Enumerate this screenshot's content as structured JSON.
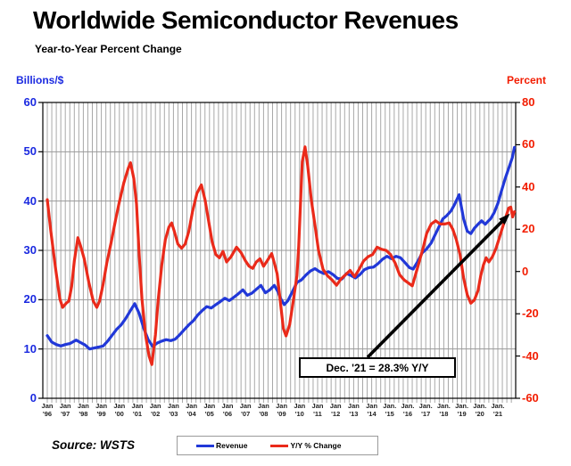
{
  "title": "Worldwide Semiconductor Revenues",
  "subtitle": "Year-to-Year Percent Change",
  "source_note": "Source: WSTS",
  "annotation": {
    "text": "Dec. '21 = 28.3% Y/Y"
  },
  "left_axis": {
    "label": "Billions/$",
    "color": "#1b2ae0",
    "min": 0,
    "max": 60,
    "step": 10,
    "ticks": [
      0,
      10,
      20,
      30,
      40,
      50,
      60
    ]
  },
  "right_axis": {
    "label": "Percent",
    "color": "#f21c00",
    "min": -60,
    "max": 80,
    "step": 20,
    "ticks": [
      -60,
      -40,
      -20,
      0,
      20,
      40,
      60,
      80
    ]
  },
  "x_axis": {
    "labels": [
      {
        "m": "Jan",
        "y": "'96"
      },
      {
        "m": "Jan",
        "y": "'97"
      },
      {
        "m": "Jan",
        "y": "'98"
      },
      {
        "m": "Jan",
        "y": "'99"
      },
      {
        "m": "Jan",
        "y": "'00"
      },
      {
        "m": "Jan",
        "y": "'01"
      },
      {
        "m": "Jan",
        "y": "'02"
      },
      {
        "m": "Jan",
        "y": "'03"
      },
      {
        "m": "Jan",
        "y": "'04"
      },
      {
        "m": "Jan",
        "y": "'05"
      },
      {
        "m": "Jan",
        "y": "'06"
      },
      {
        "m": "Jan",
        "y": "'07"
      },
      {
        "m": "Jan",
        "y": "'08"
      },
      {
        "m": "Jan",
        "y": "'09"
      },
      {
        "m": "Jan",
        "y": "'10"
      },
      {
        "m": "Jan",
        "y": "'11"
      },
      {
        "m": "Jan",
        "y": "'12"
      },
      {
        "m": "Jan",
        "y": "'13"
      },
      {
        "m": "Jan",
        "y": "'14"
      },
      {
        "m": "Jan.",
        "y": "'15"
      },
      {
        "m": "Jan.",
        "y": "'16"
      },
      {
        "m": "Jan.",
        "y": "'17"
      },
      {
        "m": "Jan.",
        "y": "'18"
      },
      {
        "m": "Jan.",
        "y": "'19"
      },
      {
        "m": "Jan.",
        "y": "'20"
      },
      {
        "m": "Jan.",
        "y": "'21"
      }
    ]
  },
  "legend": [
    {
      "label": "Revenue",
      "color": "#2138d8"
    },
    {
      "label": "Y/Y % Change",
      "color": "#ea2a1a"
    }
  ],
  "grid_color": "#a8a8a8",
  "chart_data": {
    "type": "line",
    "title": "Worldwide Semiconductor Revenues",
    "subtitle": "Year-to-Year Percent Change",
    "x_range_years": [
      1996,
      2022
    ],
    "left_ylim": [
      0,
      60
    ],
    "right_ylim": [
      -60,
      80
    ],
    "grid": "quarterly-vertical, 10-unit horizontal",
    "legend_position": "bottom-center",
    "annotation_text": "Dec. '21 = 28.3% Y/Y",
    "series": [
      {
        "name": "Revenue",
        "axis": "left",
        "units": "US$ billions per month",
        "color": "#2138d8",
        "points": [
          [
            1996.0,
            12.7
          ],
          [
            1996.25,
            11.4
          ],
          [
            1996.5,
            10.9
          ],
          [
            1996.75,
            10.6
          ],
          [
            1997.0,
            10.9
          ],
          [
            1997.25,
            11.1
          ],
          [
            1997.6,
            11.8
          ],
          [
            1997.85,
            11.3
          ],
          [
            1998.1,
            10.8
          ],
          [
            1998.35,
            10.0
          ],
          [
            1998.6,
            10.2
          ],
          [
            1998.85,
            10.4
          ],
          [
            1999.1,
            10.6
          ],
          [
            1999.35,
            11.6
          ],
          [
            1999.6,
            12.8
          ],
          [
            1999.85,
            14.0
          ],
          [
            2000.1,
            14.9
          ],
          [
            2000.35,
            16.2
          ],
          [
            2000.6,
            17.7
          ],
          [
            2000.85,
            19.2
          ],
          [
            2001.1,
            17.2
          ],
          [
            2001.35,
            14.2
          ],
          [
            2001.6,
            11.9
          ],
          [
            2001.85,
            10.5
          ],
          [
            2002.1,
            11.2
          ],
          [
            2002.35,
            11.6
          ],
          [
            2002.6,
            11.9
          ],
          [
            2002.85,
            11.7
          ],
          [
            2003.1,
            12.0
          ],
          [
            2003.35,
            12.9
          ],
          [
            2003.6,
            13.9
          ],
          [
            2003.85,
            14.9
          ],
          [
            2004.1,
            15.7
          ],
          [
            2004.35,
            16.9
          ],
          [
            2004.6,
            17.8
          ],
          [
            2004.85,
            18.6
          ],
          [
            2005.1,
            18.3
          ],
          [
            2005.35,
            19.0
          ],
          [
            2005.6,
            19.6
          ],
          [
            2005.85,
            20.3
          ],
          [
            2006.1,
            19.8
          ],
          [
            2006.35,
            20.5
          ],
          [
            2006.6,
            21.2
          ],
          [
            2006.85,
            22.0
          ],
          [
            2007.1,
            20.9
          ],
          [
            2007.35,
            21.3
          ],
          [
            2007.6,
            22.1
          ],
          [
            2007.85,
            22.9
          ],
          [
            2008.1,
            21.4
          ],
          [
            2008.35,
            22.0
          ],
          [
            2008.6,
            22.9
          ],
          [
            2008.8,
            21.6
          ],
          [
            2008.95,
            20.2
          ],
          [
            2009.15,
            19.0
          ],
          [
            2009.35,
            19.8
          ],
          [
            2009.6,
            21.6
          ],
          [
            2009.85,
            23.5
          ],
          [
            2010.1,
            24.0
          ],
          [
            2010.35,
            25.0
          ],
          [
            2010.6,
            25.8
          ],
          [
            2010.85,
            26.3
          ],
          [
            2011.1,
            25.7
          ],
          [
            2011.35,
            25.3
          ],
          [
            2011.6,
            25.7
          ],
          [
            2011.85,
            25.1
          ],
          [
            2012.1,
            24.3
          ],
          [
            2012.35,
            24.2
          ],
          [
            2012.6,
            25.3
          ],
          [
            2012.85,
            24.9
          ],
          [
            2013.1,
            24.4
          ],
          [
            2013.35,
            25.1
          ],
          [
            2013.6,
            26.1
          ],
          [
            2013.85,
            26.5
          ],
          [
            2014.1,
            26.6
          ],
          [
            2014.35,
            27.3
          ],
          [
            2014.6,
            28.2
          ],
          [
            2014.85,
            28.8
          ],
          [
            2015.1,
            28.3
          ],
          [
            2015.35,
            28.8
          ],
          [
            2015.6,
            28.5
          ],
          [
            2015.85,
            27.5
          ],
          [
            2016.1,
            26.5
          ],
          [
            2016.3,
            26.2
          ],
          [
            2016.55,
            27.7
          ],
          [
            2016.8,
            29.5
          ],
          [
            2017.05,
            30.3
          ],
          [
            2017.3,
            31.5
          ],
          [
            2017.55,
            33.4
          ],
          [
            2017.8,
            35.3
          ],
          [
            2017.95,
            36.4
          ],
          [
            2018.15,
            37.0
          ],
          [
            2018.4,
            38.0
          ],
          [
            2018.6,
            39.3
          ],
          [
            2018.85,
            41.3
          ],
          [
            2019.1,
            36.4
          ],
          [
            2019.3,
            33.9
          ],
          [
            2019.5,
            33.4
          ],
          [
            2019.7,
            34.5
          ],
          [
            2019.9,
            35.3
          ],
          [
            2020.1,
            36.0
          ],
          [
            2020.3,
            35.3
          ],
          [
            2020.45,
            35.9
          ],
          [
            2020.6,
            36.4
          ],
          [
            2020.8,
            37.7
          ],
          [
            2021.0,
            39.5
          ],
          [
            2021.2,
            42.0
          ],
          [
            2021.4,
            44.5
          ],
          [
            2021.6,
            46.6
          ],
          [
            2021.8,
            48.8
          ],
          [
            2021.92,
            50.9
          ]
        ]
      },
      {
        "name": "Y/Y % Change",
        "axis": "right",
        "units": "percent",
        "color": "#ea2a1a",
        "points": [
          [
            1996.0,
            34
          ],
          [
            1996.2,
            19
          ],
          [
            1996.45,
            2
          ],
          [
            1996.7,
            -13
          ],
          [
            1996.85,
            -17
          ],
          [
            1997.05,
            -15
          ],
          [
            1997.2,
            -14
          ],
          [
            1997.35,
            -7
          ],
          [
            1997.5,
            5
          ],
          [
            1997.7,
            16
          ],
          [
            1997.85,
            12
          ],
          [
            1998.05,
            6
          ],
          [
            1998.3,
            -5
          ],
          [
            1998.55,
            -14
          ],
          [
            1998.75,
            -17
          ],
          [
            1998.9,
            -14
          ],
          [
            1999.1,
            -6
          ],
          [
            1999.3,
            4
          ],
          [
            1999.55,
            14
          ],
          [
            1999.8,
            25
          ],
          [
            2000.0,
            33
          ],
          [
            2000.25,
            42
          ],
          [
            2000.5,
            49
          ],
          [
            2000.62,
            51.5
          ],
          [
            2000.8,
            44
          ],
          [
            2000.95,
            32
          ],
          [
            2001.1,
            8
          ],
          [
            2001.25,
            -13
          ],
          [
            2001.45,
            -30
          ],
          [
            2001.65,
            -40
          ],
          [
            2001.8,
            -44
          ],
          [
            2002.0,
            -30
          ],
          [
            2002.15,
            -14
          ],
          [
            2002.35,
            3
          ],
          [
            2002.55,
            15
          ],
          [
            2002.75,
            21
          ],
          [
            2002.9,
            23
          ],
          [
            2003.05,
            19
          ],
          [
            2003.25,
            13
          ],
          [
            2003.45,
            11
          ],
          [
            2003.65,
            13
          ],
          [
            2003.85,
            19
          ],
          [
            2004.05,
            28
          ],
          [
            2004.3,
            37
          ],
          [
            2004.55,
            41
          ],
          [
            2004.75,
            34
          ],
          [
            2004.95,
            24
          ],
          [
            2005.15,
            14
          ],
          [
            2005.35,
            8
          ],
          [
            2005.55,
            6.5
          ],
          [
            2005.75,
            9.5
          ],
          [
            2005.95,
            4.5
          ],
          [
            2006.2,
            7
          ],
          [
            2006.5,
            11.5
          ],
          [
            2006.75,
            9
          ],
          [
            2007.0,
            5
          ],
          [
            2007.2,
            2.5
          ],
          [
            2007.4,
            1.5
          ],
          [
            2007.6,
            4.5
          ],
          [
            2007.8,
            6
          ],
          [
            2008.0,
            2.5
          ],
          [
            2008.2,
            5
          ],
          [
            2008.45,
            8.5
          ],
          [
            2008.6,
            4
          ],
          [
            2008.75,
            -1
          ],
          [
            2008.9,
            -12
          ],
          [
            2009.1,
            -27
          ],
          [
            2009.25,
            -30.5
          ],
          [
            2009.45,
            -25
          ],
          [
            2009.65,
            -14
          ],
          [
            2009.85,
            -2
          ],
          [
            2009.95,
            12
          ],
          [
            2010.15,
            52
          ],
          [
            2010.3,
            59
          ],
          [
            2010.45,
            50
          ],
          [
            2010.65,
            34
          ],
          [
            2010.85,
            22
          ],
          [
            2011.05,
            10
          ],
          [
            2011.3,
            1
          ],
          [
            2011.55,
            -2
          ],
          [
            2011.8,
            -4
          ],
          [
            2012.05,
            -6.5
          ],
          [
            2012.3,
            -3.5
          ],
          [
            2012.55,
            -1.5
          ],
          [
            2012.8,
            0.5
          ],
          [
            2013.05,
            -2.5
          ],
          [
            2013.3,
            1
          ],
          [
            2013.55,
            5
          ],
          [
            2013.8,
            7
          ],
          [
            2014.05,
            8
          ],
          [
            2014.3,
            11.5
          ],
          [
            2014.55,
            10.5
          ],
          [
            2014.8,
            10
          ],
          [
            2015.05,
            8
          ],
          [
            2015.3,
            4
          ],
          [
            2015.55,
            -1.5
          ],
          [
            2015.8,
            -4
          ],
          [
            2016.05,
            -5.5
          ],
          [
            2016.25,
            -6.8
          ],
          [
            2016.45,
            -1
          ],
          [
            2016.65,
            5
          ],
          [
            2016.85,
            11
          ],
          [
            2017.05,
            18
          ],
          [
            2017.3,
            22.5
          ],
          [
            2017.55,
            24
          ],
          [
            2017.8,
            22.5
          ],
          [
            2018.05,
            22.5
          ],
          [
            2018.3,
            23
          ],
          [
            2018.5,
            20
          ],
          [
            2018.7,
            15
          ],
          [
            2018.9,
            8
          ],
          [
            2019.1,
            -3
          ],
          [
            2019.3,
            -11
          ],
          [
            2019.5,
            -15
          ],
          [
            2019.7,
            -13.5
          ],
          [
            2019.9,
            -9
          ],
          [
            2020.05,
            -2
          ],
          [
            2020.2,
            3
          ],
          [
            2020.35,
            6.5
          ],
          [
            2020.5,
            4.5
          ],
          [
            2020.7,
            7
          ],
          [
            2020.9,
            11
          ],
          [
            2021.05,
            15
          ],
          [
            2021.25,
            20.5
          ],
          [
            2021.45,
            26
          ],
          [
            2021.6,
            30
          ],
          [
            2021.72,
            30.5
          ],
          [
            2021.82,
            25.8
          ],
          [
            2021.92,
            28.3
          ]
        ]
      }
    ]
  }
}
